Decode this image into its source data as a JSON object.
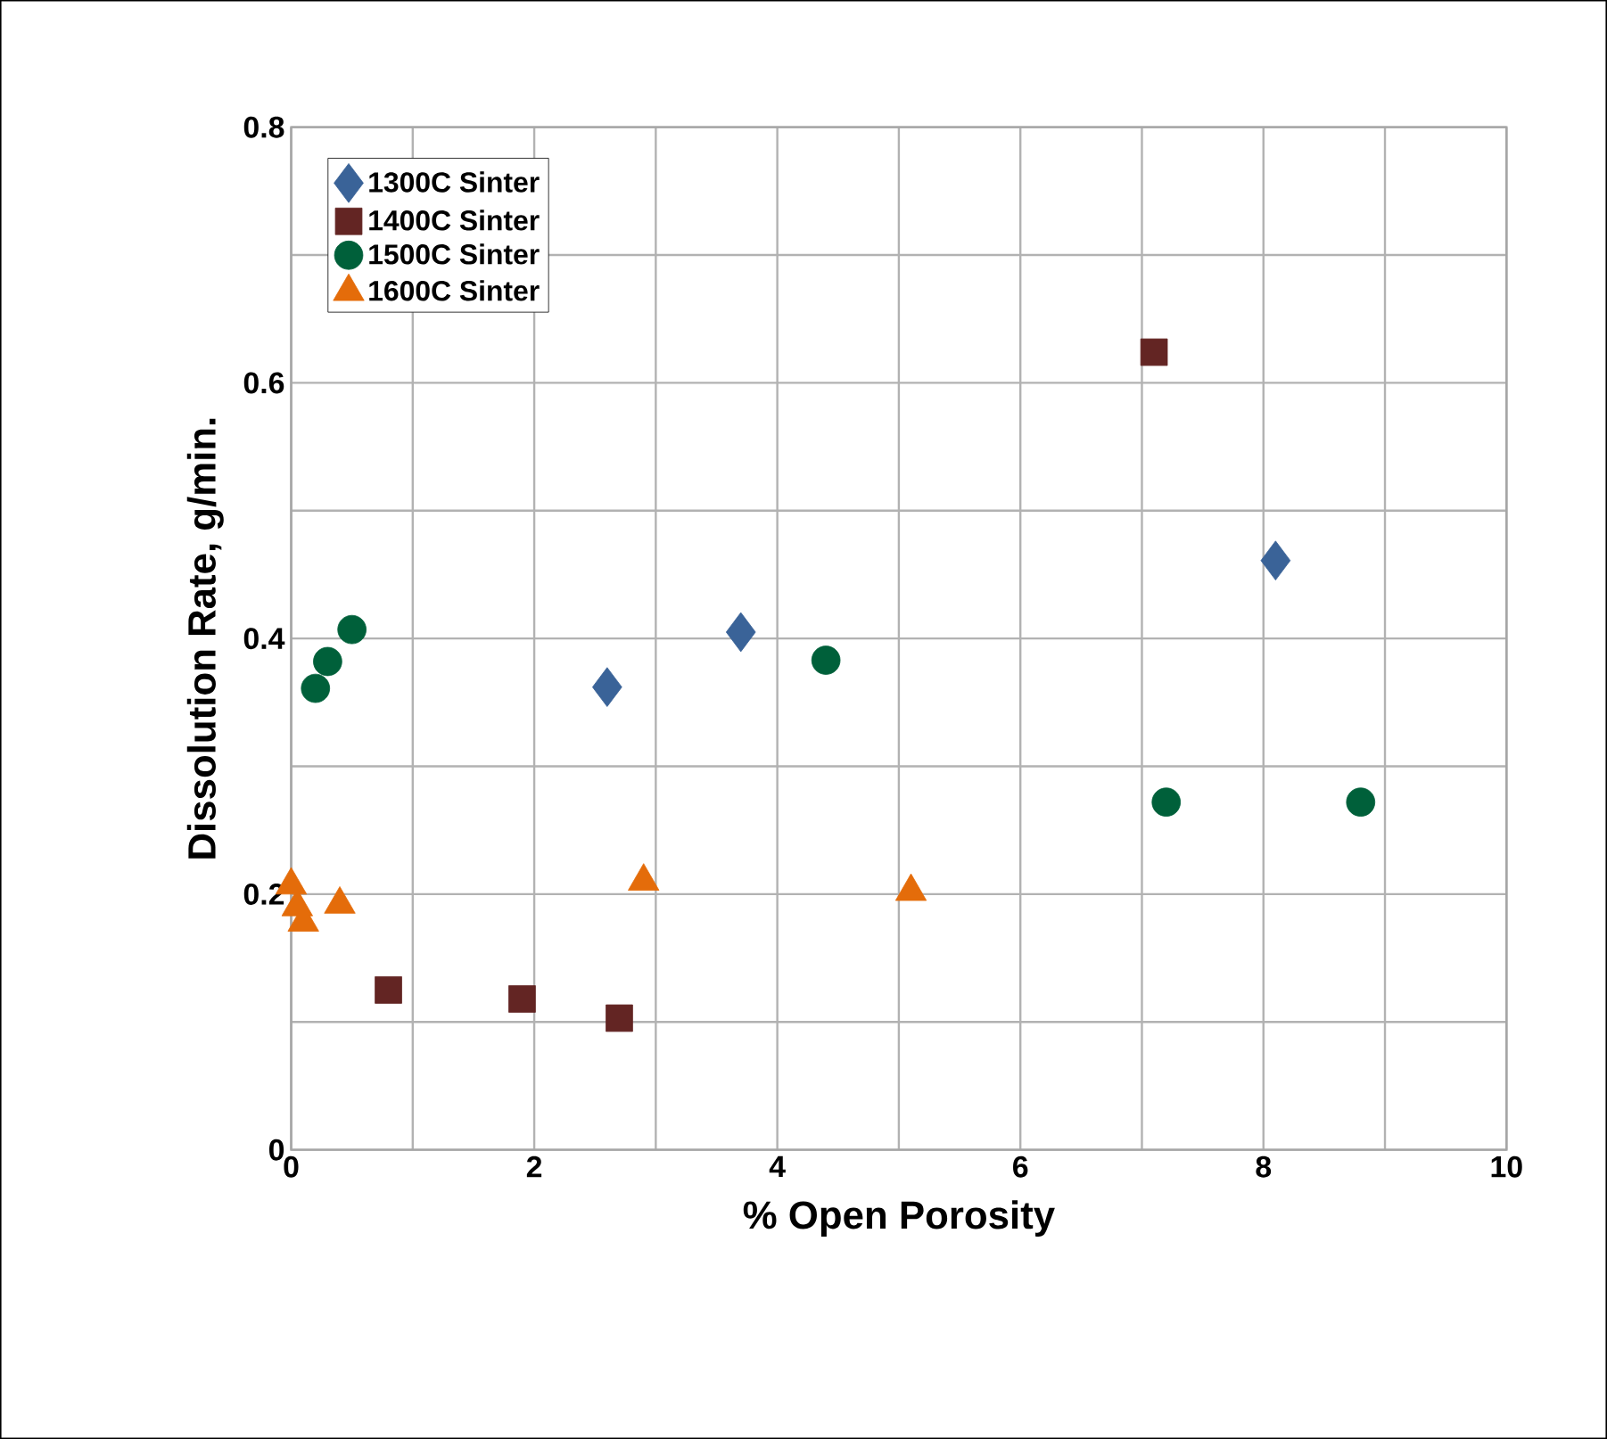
{
  "chart_data": {
    "type": "scatter",
    "xlabel": "% Open Porosity",
    "ylabel": "Dissolution Rate, g/min.",
    "xlim": [
      0,
      10
    ],
    "ylim": [
      0,
      0.8
    ],
    "xticks": [
      0,
      {
        "value": 1,
        "label": null
      },
      2,
      {
        "value": 3,
        "label": null
      },
      4,
      {
        "value": 5,
        "label": null
      },
      6,
      {
        "value": 7,
        "label": null
      },
      8,
      {
        "value": 9,
        "label": null
      },
      10
    ],
    "yticks": [
      0,
      {
        "value": 0.1,
        "label": null
      },
      0.2,
      {
        "value": 0.3,
        "label": null
      },
      0.4,
      {
        "value": 0.5,
        "label": null
      },
      0.6,
      {
        "value": 0.7,
        "label": null
      },
      0.8
    ],
    "grid": true,
    "legend": "top left",
    "series": [
      {
        "name": "1300C Sinter",
        "color": "#3a6398",
        "marker": "diamond",
        "x": [
          2.6,
          3.7,
          8.1
        ],
        "values": [
          0.362,
          0.405,
          0.461
        ]
      },
      {
        "name": "1400C Sinter",
        "color": "#632523",
        "marker": "square",
        "x": [
          0.8,
          1.9,
          2.7,
          7.1
        ],
        "values": [
          0.125,
          0.118,
          0.103,
          0.624
        ]
      },
      {
        "name": "1500C Sinter",
        "color": "#00603a",
        "marker": "circle",
        "x": [
          0.2,
          0.3,
          0.5,
          4.4,
          7.2,
          8.8
        ],
        "values": [
          0.361,
          0.382,
          0.407,
          0.383,
          0.272,
          0.272
        ]
      },
      {
        "name": "1600C Sinter",
        "color": "#e46c0a",
        "marker": "triangle",
        "x": [
          0,
          0.05,
          0.1,
          0.4,
          2.9,
          5.1
        ],
        "values": [
          0.207,
          0.19,
          0.178,
          0.192,
          0.21,
          0.202
        ]
      }
    ]
  }
}
